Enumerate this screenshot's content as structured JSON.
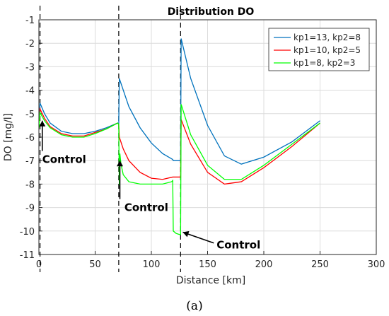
{
  "chart_data": {
    "type": "line",
    "title": "Distribution DO",
    "xlabel": "Distance [km]",
    "ylabel": "DO [mg/l]",
    "xlim": [
      0,
      300
    ],
    "ylim": [
      -11,
      -1
    ],
    "xticks": [
      0,
      50,
      100,
      150,
      200,
      250,
      300
    ],
    "yticks": [
      -1,
      -2,
      -3,
      -4,
      -5,
      -6,
      -7,
      -8,
      -9,
      -10,
      -11
    ],
    "grid": true,
    "legend_position": "top-right",
    "series": [
      {
        "name": "kp1=13, kp2=8",
        "color": "#0072BD",
        "x": [
          0,
          1,
          5,
          10,
          20,
          30,
          40,
          50,
          60,
          70,
          71,
          71.5,
          80,
          90,
          100,
          110,
          119,
          119.5,
          125,
          126,
          126.5,
          135,
          150,
          165,
          180,
          200,
          225,
          250
        ],
        "y": [
          -5.6,
          -4.55,
          -5.0,
          -5.4,
          -5.75,
          -5.85,
          -5.85,
          -5.75,
          -5.6,
          -5.4,
          -5.45,
          -3.5,
          -4.7,
          -5.6,
          -6.25,
          -6.7,
          -6.95,
          -7.0,
          -7.0,
          -7.0,
          -1.8,
          -3.5,
          -5.5,
          -6.8,
          -7.15,
          -6.85,
          -6.2,
          -5.3
        ]
      },
      {
        "name": "kp1=10, kp2=5",
        "color": "#FF0000",
        "x": [
          0,
          1,
          5,
          10,
          20,
          30,
          40,
          50,
          60,
          70,
          71,
          71.5,
          75,
          80,
          90,
          100,
          110,
          119,
          119.5,
          125,
          126,
          126.5,
          135,
          150,
          165,
          180,
          200,
          225,
          250
        ],
        "y": [
          -5.6,
          -4.8,
          -5.2,
          -5.55,
          -5.85,
          -5.95,
          -5.95,
          -5.8,
          -5.65,
          -5.4,
          -5.45,
          -6.0,
          -6.5,
          -7.0,
          -7.5,
          -7.75,
          -7.8,
          -7.7,
          -7.7,
          -7.7,
          -7.7,
          -5.25,
          -6.3,
          -7.5,
          -8.0,
          -7.9,
          -7.3,
          -6.4,
          -5.4
        ]
      },
      {
        "name": "kp1=8, kp2=3",
        "color": "#00FF00",
        "x": [
          0,
          1,
          5,
          10,
          20,
          30,
          40,
          50,
          60,
          70,
          71,
          71.5,
          72,
          73,
          75,
          80,
          90,
          100,
          110,
          118,
          119,
          119.5,
          122,
          125,
          126,
          126.5,
          135,
          150,
          165,
          180,
          200,
          225,
          250
        ],
        "y": [
          -5.6,
          -4.95,
          -5.3,
          -5.6,
          -5.9,
          -6.0,
          -6.0,
          -5.85,
          -5.65,
          -5.4,
          -5.45,
          -8.05,
          -6.7,
          -7.15,
          -7.6,
          -7.9,
          -8.0,
          -8.0,
          -8.0,
          -7.9,
          -7.85,
          -10.0,
          -10.1,
          -10.15,
          -10.15,
          -4.6,
          -5.9,
          -7.2,
          -7.8,
          -7.8,
          -7.2,
          -6.3,
          -5.4
        ]
      }
    ],
    "vertical_markers": [
      1,
      71,
      126
    ],
    "annotations": [
      {
        "text": "Control",
        "x": 3,
        "y": -6.95,
        "arrow_to": [
          3,
          -5.3
        ]
      },
      {
        "text": "Control",
        "x": 76,
        "y": -9.0,
        "arrow_to": [
          72,
          -7.0
        ]
      },
      {
        "text": "Control",
        "x": 158,
        "y": -10.6,
        "arrow_to": [
          128,
          -10.05
        ]
      }
    ]
  },
  "caption": "(a)"
}
